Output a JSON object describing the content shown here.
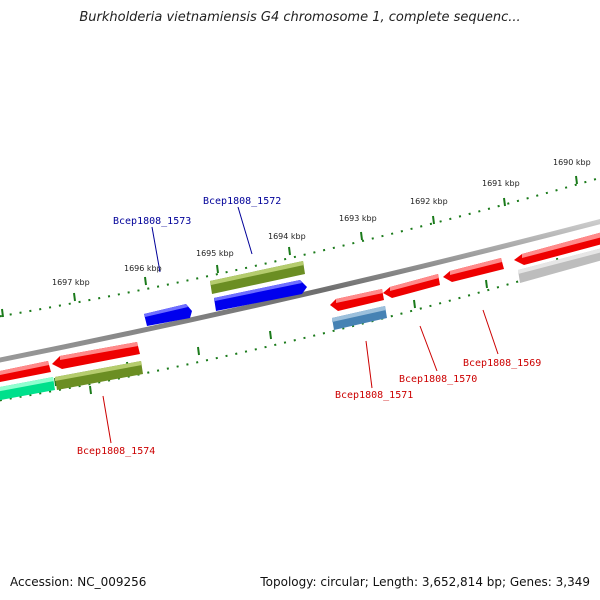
{
  "title": "Burkholderia vietnamiensis G4 chromosome 1, complete sequenc...",
  "footer": {
    "accession": "Accession: NC_009256",
    "summary": "Topology: circular; Length: 3,652,814 bp; Genes: 3,349"
  },
  "ticks": [
    {
      "label": "1690 kbp"
    },
    {
      "label": "1691 kbp"
    },
    {
      "label": "1692 kbp"
    },
    {
      "label": "1693 kbp"
    },
    {
      "label": "1694 kbp"
    },
    {
      "label": "1695 kbp"
    },
    {
      "label": "1696 kbp"
    },
    {
      "label": "1697 kbp"
    }
  ],
  "genes": [
    {
      "name": "Bcep1808_1569",
      "strand": "forward",
      "color": "#cc0000"
    },
    {
      "name": "Bcep1808_1570",
      "strand": "forward",
      "color": "#cc0000"
    },
    {
      "name": "Bcep1808_1571",
      "strand": "forward",
      "color": "#cc0000"
    },
    {
      "name": "Bcep1808_1572",
      "strand": "reverse",
      "color": "#000099"
    },
    {
      "name": "Bcep1808_1573",
      "strand": "reverse",
      "color": "#000099"
    },
    {
      "name": "Bcep1808_1574",
      "strand": "forward",
      "color": "#cc0000"
    }
  ],
  "colors": {
    "backbone": "#7f7f7f",
    "tick": "#1a7a1a",
    "cds_red": "#ee0000",
    "cds_blue": "#0000ee",
    "olive": "#6b8e23",
    "steel": "#4682b4",
    "teal": "#00e08c",
    "grey": "#bdbdbd"
  }
}
